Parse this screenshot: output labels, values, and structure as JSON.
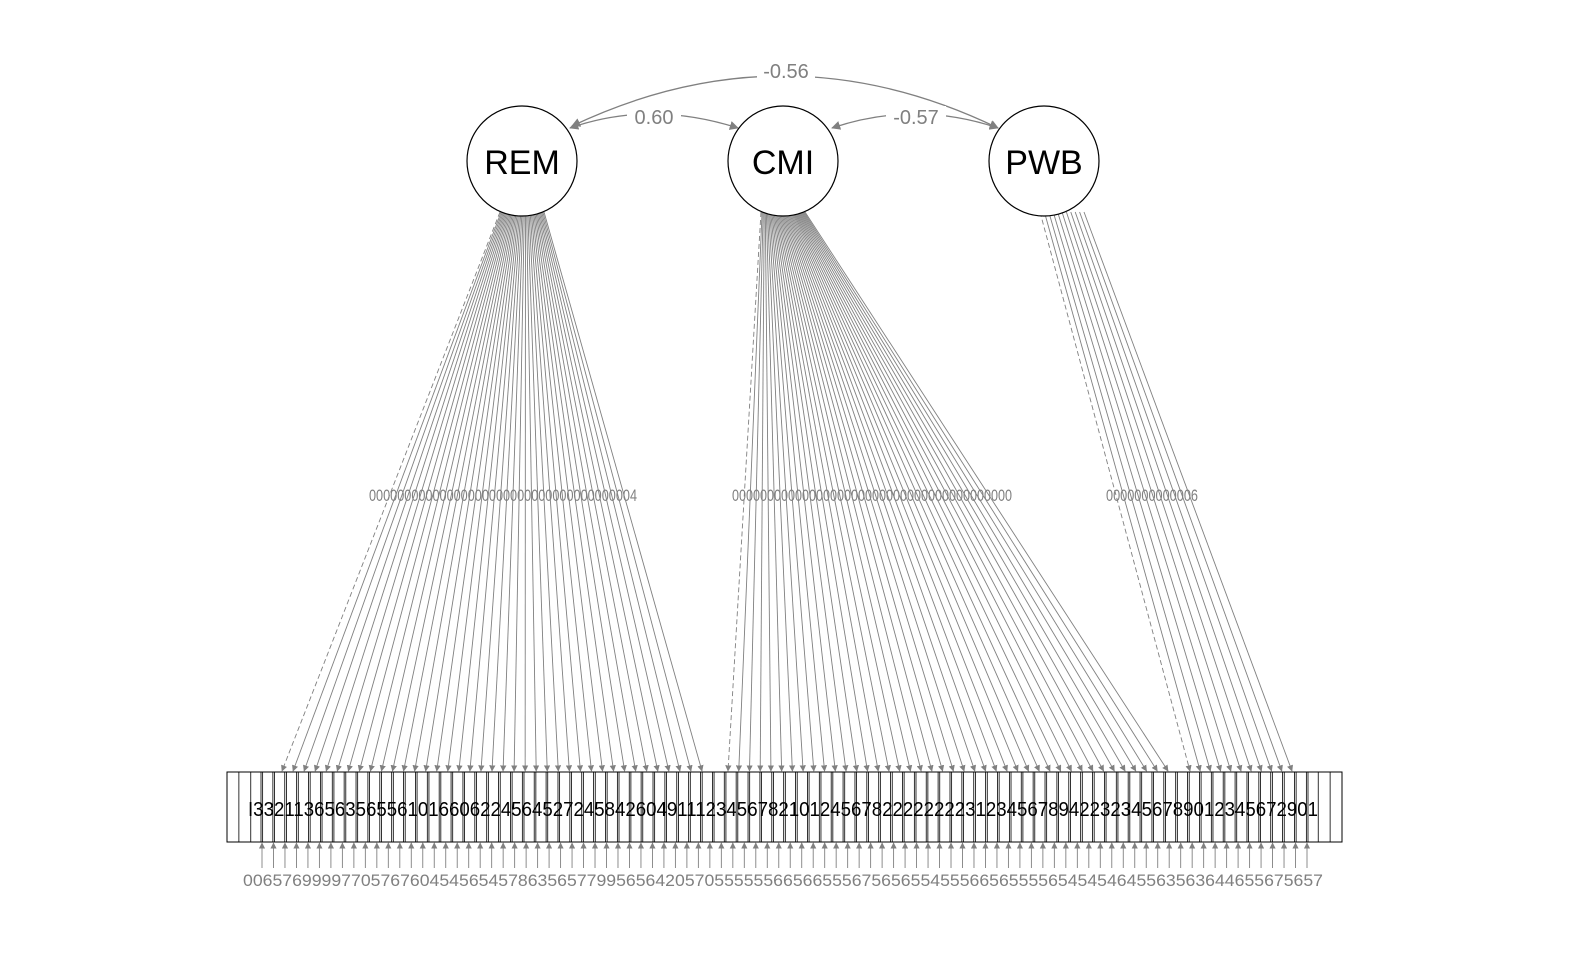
{
  "latents": [
    {
      "id": "REM",
      "label": "REM"
    },
    {
      "id": "CMI",
      "label": "CMI"
    },
    {
      "id": "PWB",
      "label": "PWB"
    }
  ],
  "covariances": [
    {
      "from": "REM",
      "to": "PWB",
      "label": "-0.56"
    },
    {
      "from": "REM",
      "to": "CMI",
      "label": "0.60"
    },
    {
      "from": "CMI",
      "to": "PWB",
      "label": "-0.57"
    }
  ],
  "indicators": {
    "REM": 39,
    "CMI": 42,
    "PWB": 11
  },
  "loading_labels": {
    "REM": "00000000000000000000000000000000000004",
    "CMI": "0000000000000000000000000000000000000000",
    "PWB": "0000000000006"
  },
  "indicator_labels_row": "I3321136563565561016606224564527245842604911123456782101245678222222223123456789422323456789012345672901",
  "residual_labels_row": "00657699997705767604545654578635657799565642057055555566566555675656554555665655556545454645563563644655675657",
  "colors": {
    "line": "#808080",
    "text": "#000000",
    "edge_text": "#808080"
  }
}
